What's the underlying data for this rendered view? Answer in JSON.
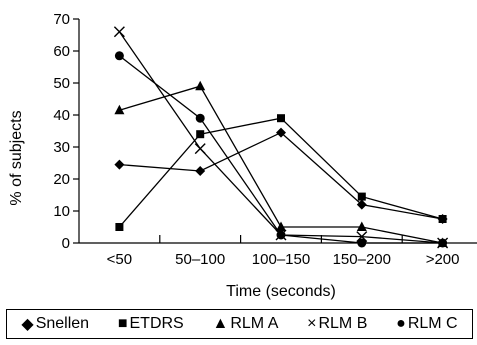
{
  "chart_data": {
    "type": "line",
    "xlabel": "Time (seconds)",
    "ylabel": "% of subjects",
    "categories": [
      "<50",
      "50–100",
      "100–150",
      "150–200",
      ">200"
    ],
    "ylim": [
      0,
      70
    ],
    "yticks": [
      0,
      10,
      20,
      30,
      40,
      50,
      60,
      70
    ],
    "grid": false,
    "legend_position": "bottom",
    "series": [
      {
        "name": "Snellen",
        "marker": "diamond",
        "symbol": "◆",
        "values": [
          24.5,
          22.5,
          34.5,
          12,
          7.5
        ]
      },
      {
        "name": "ETDRS",
        "marker": "square",
        "symbol": "■",
        "values": [
          5,
          34,
          39,
          14.5,
          7.5
        ]
      },
      {
        "name": "RLM A",
        "marker": "triangle",
        "symbol": "▲",
        "values": [
          41.5,
          49,
          5,
          5,
          0
        ]
      },
      {
        "name": "RLM B",
        "marker": "x",
        "symbol": "×",
        "values": [
          66,
          29.5,
          2.5,
          2,
          0
        ]
      },
      {
        "name": "RLM C",
        "marker": "circle",
        "symbol": "●",
        "values": [
          58.5,
          39,
          2.5,
          0,
          0
        ]
      }
    ],
    "colors": {
      "line": "#000000",
      "marker": "#000000",
      "background": "#ffffff"
    }
  }
}
